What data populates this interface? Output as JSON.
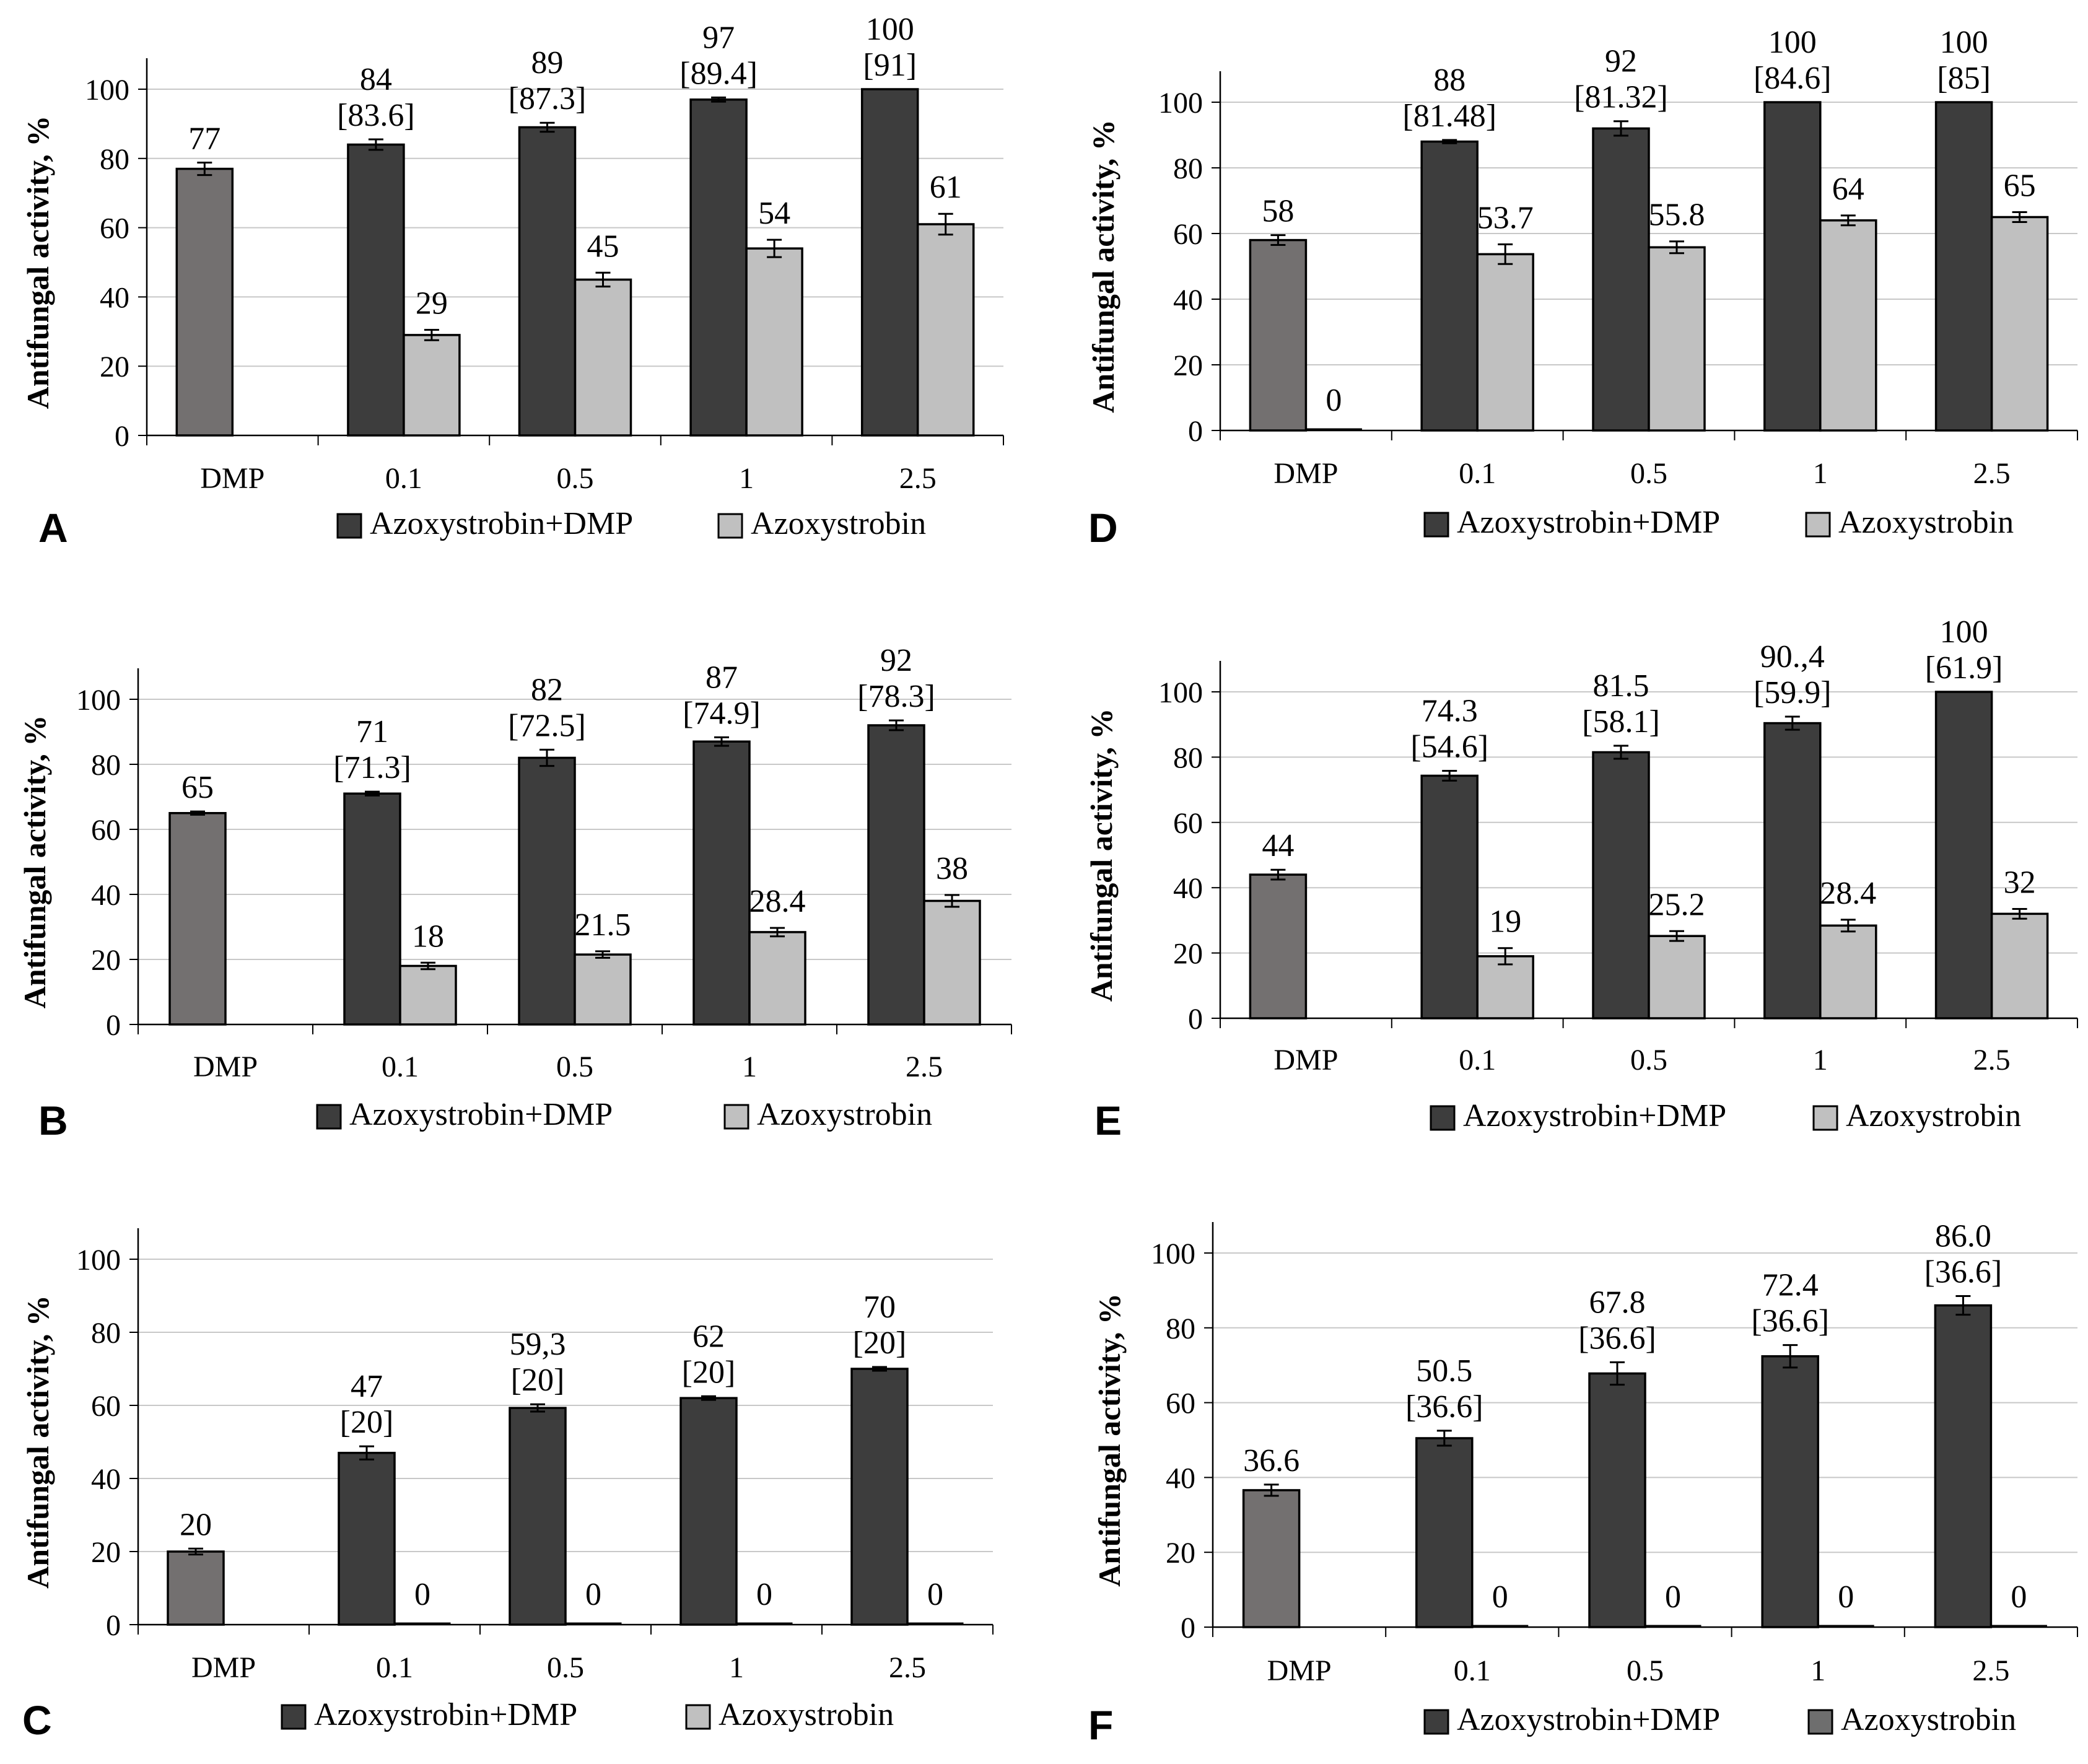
{
  "chart_data": [
    {
      "type": "bar",
      "panel": "A",
      "ylabel": "Antifungal activity, %",
      "ylim": [
        0,
        100
      ],
      "yticks": [
        "0",
        "20",
        "40",
        "60",
        "80",
        "100"
      ],
      "grid": true,
      "categories": [
        "DMP",
        "0.1",
        "0.5",
        "1",
        "2.5"
      ],
      "legend_position": "bottom",
      "series": [
        {
          "name": "Azoxystrobin+DMP",
          "color": "#3d3d3d",
          "values": [
            77,
            84,
            89,
            97,
            100
          ],
          "errors": [
            1.8,
            1.5,
            1.3,
            0.6,
            0
          ],
          "labels": [
            "77",
            "84",
            "89",
            "97",
            "100"
          ],
          "expected": [
            null,
            "[83.6]",
            "[87.3]",
            "[89.4]",
            "[91]"
          ]
        },
        {
          "name": "Azoxystrobin",
          "color": "#c0c0c0",
          "values": [
            null,
            29,
            45,
            54,
            61
          ],
          "errors": [
            null,
            1.5,
            2,
            2.5,
            3
          ],
          "labels": [
            null,
            "29",
            "45",
            "54",
            "61"
          ]
        }
      ]
    },
    {
      "type": "bar",
      "panel": "B",
      "ylabel": "Antifungal activity, %",
      "ylim": [
        0,
        100
      ],
      "yticks": [
        "0",
        "20",
        "40",
        "60",
        "80",
        "100"
      ],
      "grid": true,
      "categories": [
        "DMP",
        "0.1",
        "0.5",
        "1",
        "2.5"
      ],
      "legend_position": "bottom",
      "series": [
        {
          "name": "Azoxystrobin+DMP",
          "color": "#3d3d3d",
          "values": [
            65,
            71,
            82,
            87,
            92
          ],
          "errors": [
            0.5,
            0.6,
            2.5,
            1.3,
            1.5
          ],
          "labels": [
            "65",
            "71",
            "82",
            "87",
            "92"
          ],
          "expected": [
            null,
            "[71.3]",
            "[72.5]",
            "[74.9]",
            "[78.3]"
          ]
        },
        {
          "name": "Azoxystrobin",
          "color": "#c0c0c0",
          "values": [
            null,
            18,
            21.5,
            28.4,
            38
          ],
          "errors": [
            null,
            1,
            1,
            1.3,
            1.8
          ],
          "labels": [
            null,
            "18",
            "21.5",
            "28.4",
            "38"
          ]
        }
      ]
    },
    {
      "type": "bar",
      "panel": "C",
      "ylabel": "Antifungal activity, %",
      "ylim": [
        0,
        100
      ],
      "yticks": [
        "0",
        "20",
        "40",
        "60",
        "80",
        "100"
      ],
      "grid": true,
      "categories": [
        "DMP",
        "0.1",
        "0.5",
        "1",
        "2.5"
      ],
      "legend_position": "bottom",
      "series": [
        {
          "name": "Azoxystrobin+DMP",
          "color": "#3d3d3d",
          "values": [
            20,
            47,
            59.3,
            62,
            70
          ],
          "errors": [
            0.8,
            1.8,
            1,
            0.5,
            0.5
          ],
          "labels": [
            "20",
            "47",
            "59,3",
            "62",
            "70"
          ],
          "expected": [
            null,
            "[20]",
            "[20]",
            "[20]",
            "[20]"
          ]
        },
        {
          "name": "Azoxystrobin",
          "color": "#c0c0c0",
          "values": [
            null,
            0,
            0,
            0,
            0
          ],
          "errors": [
            null,
            0,
            0,
            0,
            0
          ],
          "labels": [
            null,
            "0",
            "0",
            "0",
            "0"
          ]
        }
      ]
    },
    {
      "type": "bar",
      "panel": "D",
      "ylabel": "Antifungal activity, %",
      "ylim": [
        0,
        100
      ],
      "yticks": [
        "0",
        "20",
        "40",
        "60",
        "80",
        "100"
      ],
      "grid": true,
      "categories": [
        "DMP",
        "0.1",
        "0.5",
        "1",
        "2.5"
      ],
      "legend_position": "bottom",
      "series": [
        {
          "name": "Azoxystrobin+DMP",
          "color": "#3d3d3d",
          "values": [
            58,
            88,
            92,
            100,
            100
          ],
          "errors": [
            1.5,
            0.5,
            2.2,
            0,
            0
          ],
          "labels": [
            "58",
            "88",
            "92",
            "100",
            "100"
          ],
          "expected": [
            null,
            "[81.48]",
            "[81.32]",
            "[84.6]",
            "[85]"
          ]
        },
        {
          "name": "Azoxystrobin",
          "color": "#c0c0c0",
          "values": [
            0,
            53.7,
            55.8,
            64,
            65
          ],
          "errors": [
            0,
            3,
            1.8,
            1.5,
            1.5
          ],
          "labels": [
            "0",
            "53.7",
            "55.8",
            "64",
            "65"
          ]
        }
      ]
    },
    {
      "type": "bar",
      "panel": "E",
      "ylabel": "Antifungal activity, %",
      "ylim": [
        0,
        100
      ],
      "yticks": [
        "0",
        "20",
        "40",
        "60",
        "80",
        "100"
      ],
      "grid": true,
      "categories": [
        "DMP",
        "0.1",
        "0.5",
        "1",
        "2.5"
      ],
      "legend_position": "bottom",
      "series": [
        {
          "name": "Azoxystrobin+DMP",
          "color": "#3d3d3d",
          "values": [
            44,
            74.3,
            81.5,
            90.4,
            100
          ],
          "errors": [
            1.5,
            1.5,
            2,
            2,
            0
          ],
          "labels": [
            "44",
            "74.3",
            "81.5",
            "90.,4",
            "100"
          ],
          "expected": [
            null,
            "[54.6]",
            "[58.1]",
            "[59.9]",
            "[61.9]"
          ]
        },
        {
          "name": "Azoxystrobin",
          "color": "#c0c0c0",
          "values": [
            null,
            19,
            25.2,
            28.4,
            32
          ],
          "errors": [
            null,
            2.5,
            1.5,
            1.8,
            1.5
          ],
          "labels": [
            null,
            "19",
            "25.2",
            "28.4",
            "32"
          ]
        }
      ]
    },
    {
      "type": "bar",
      "panel": "F",
      "ylabel": "Antifungal activity, %",
      "ylim": [
        0,
        100
      ],
      "yticks": [
        "0",
        "20",
        "40",
        "60",
        "80",
        "100"
      ],
      "grid": true,
      "categories": [
        "DMP",
        "0.1",
        "0.5",
        "1",
        "2.5"
      ],
      "legend_position": "bottom",
      "series": [
        {
          "name": "Azoxystrobin+DMP",
          "color": "#3d3d3d",
          "values": [
            36.6,
            50.5,
            67.8,
            72.4,
            86.0
          ],
          "errors": [
            1.5,
            2,
            3,
            3,
            2.5
          ],
          "labels": [
            "36.6",
            "50.5",
            "67.8",
            "72.4",
            "86.0"
          ],
          "expected": [
            null,
            "[36.6]",
            "[36.6]",
            "[36.6]",
            "[36.6]"
          ]
        },
        {
          "name": "Azoxystrobin",
          "color": "#6e6e6e",
          "values": [
            null,
            0,
            0,
            0,
            0
          ],
          "errors": [
            null,
            0,
            0,
            0,
            0
          ],
          "labels": [
            null,
            "0",
            "0",
            "0",
            "0"
          ]
        }
      ]
    }
  ],
  "colors": {
    "dmp_bar": "#737070",
    "combo_bar": "#3d3d3d",
    "azoxy_bar": "#c0c0c0",
    "azoxy_bar_panel_f": "#6e6e6e",
    "grid": "#c8c8c8",
    "axis": "#000000"
  }
}
